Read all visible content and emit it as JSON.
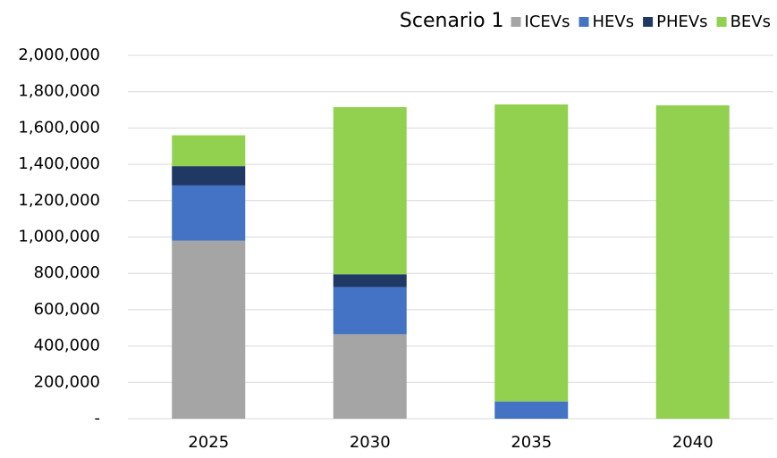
{
  "chart_data": {
    "type": "bar",
    "stacked": true,
    "title": "Scenario 1",
    "categories": [
      "2025",
      "2030",
      "2035",
      "2040"
    ],
    "series": [
      {
        "name": "ICEVs",
        "color": "#a5a5a5",
        "values": [
          980000,
          465000,
          0,
          0
        ]
      },
      {
        "name": "HEVs",
        "color": "#4472c4",
        "values": [
          305000,
          260000,
          95000,
          0
        ]
      },
      {
        "name": "PHEVs",
        "color": "#203864",
        "values": [
          105000,
          70000,
          0,
          0
        ]
      },
      {
        "name": "BEVs",
        "color": "#92d050",
        "values": [
          170000,
          920000,
          1635000,
          1725000
        ]
      }
    ],
    "ylim": [
      0,
      2000000
    ],
    "yticks": [
      {
        "value": 0,
        "label": "-"
      },
      {
        "value": 200000,
        "label": "200,000"
      },
      {
        "value": 400000,
        "label": "400,000"
      },
      {
        "value": 600000,
        "label": "600,000"
      },
      {
        "value": 800000,
        "label": "800,000"
      },
      {
        "value": 1000000,
        "label": "1,000,000"
      },
      {
        "value": 1200000,
        "label": "1,200,000"
      },
      {
        "value": 1400000,
        "label": "1,400,000"
      },
      {
        "value": 1600000,
        "label": "1,600,000"
      },
      {
        "value": 1800000,
        "label": "1,800,000"
      },
      {
        "value": 2000000,
        "label": "2,000,000"
      }
    ],
    "grid": true,
    "legend": "top"
  }
}
